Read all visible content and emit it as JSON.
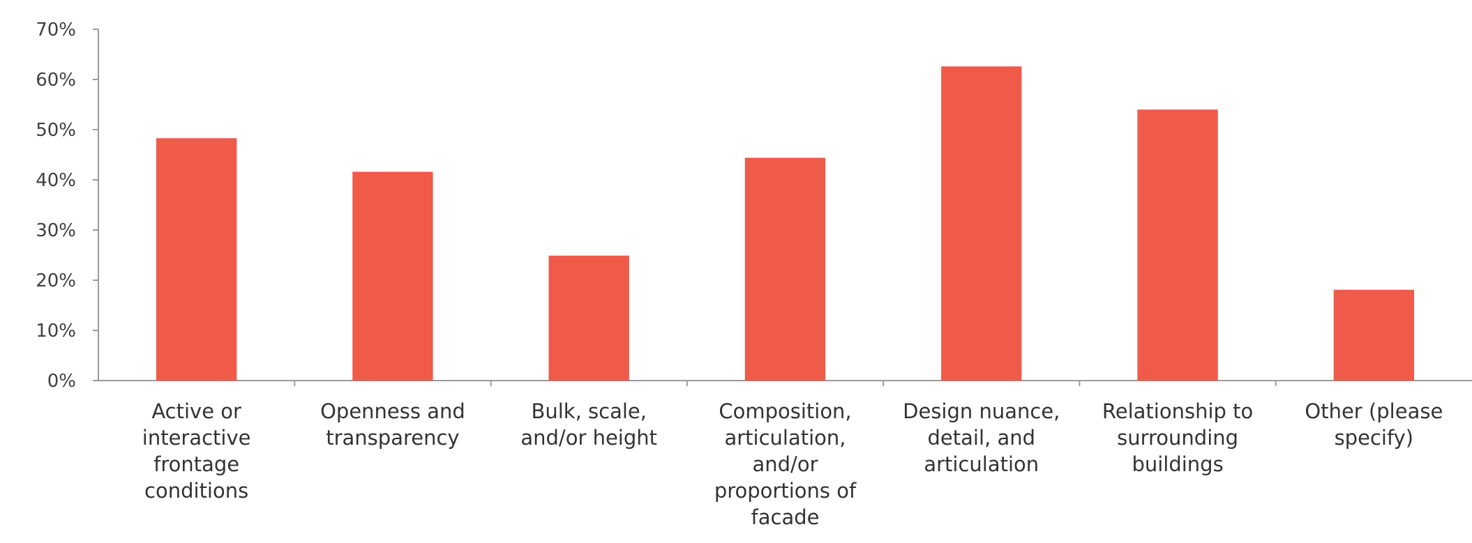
{
  "chart_data": {
    "type": "bar",
    "title": "",
    "xlabel": "",
    "ylabel": "",
    "ylim": [
      0,
      0.7
    ],
    "yticks": [
      0,
      0.1,
      0.2,
      0.3,
      0.4,
      0.5,
      0.6,
      0.7
    ],
    "ytick_labels": [
      "0%",
      "10%",
      "20%",
      "30%",
      "40%",
      "50%",
      "60%",
      "70%"
    ],
    "grid": false,
    "bar_color": "#ef5a49",
    "categories": [
      [
        "Active or",
        "interactive",
        "frontage",
        "conditions"
      ],
      [
        "Openness and",
        "transparency"
      ],
      [
        "Bulk, scale,",
        "and/or height"
      ],
      [
        "Composition,",
        "articulation,",
        "and/or",
        "proportions of",
        "facade"
      ],
      [
        "Design nuance,",
        "detail, and",
        "articulation"
      ],
      [
        "Relationship to",
        "surrounding",
        "buildings"
      ],
      [
        "Other (please",
        "specify)"
      ]
    ],
    "values": [
      0.483,
      0.416,
      0.249,
      0.444,
      0.626,
      0.54,
      0.181
    ]
  }
}
